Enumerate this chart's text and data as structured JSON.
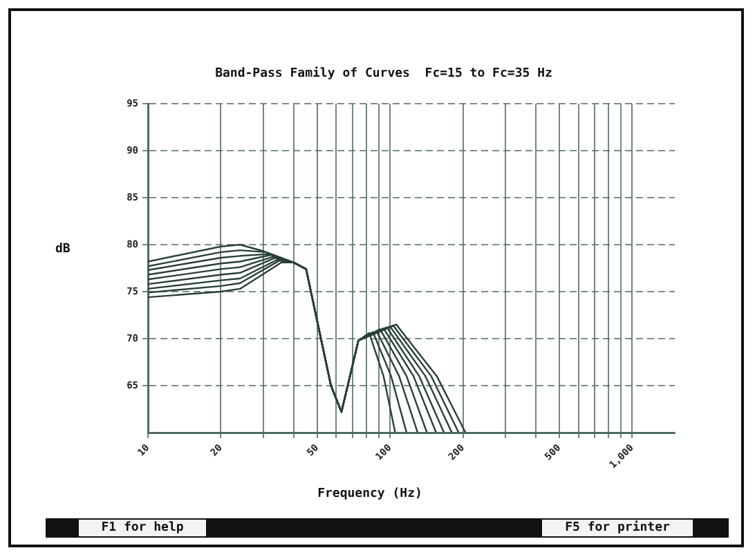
{
  "chart_data": {
    "type": "line",
    "title": "Band-Pass Family of Curves  Fc=15 to Fc=35 Hz",
    "xlabel": "Frequency (Hz)",
    "ylabel": "dB",
    "log": "x",
    "grid": true,
    "legend": false,
    "marker": "none",
    "line_style": "solid",
    "xlim": [
      10,
      1500
    ],
    "ylim": [
      60,
      95
    ],
    "xticks": [
      10,
      20,
      {
        "value": 30,
        "label": null
      },
      {
        "value": 40,
        "label": null
      },
      50,
      {
        "value": 60,
        "label": null
      },
      {
        "value": 70,
        "label": null
      },
      {
        "value": 80,
        "label": null
      },
      {
        "value": 90,
        "label": null
      },
      100,
      200,
      {
        "value": 300,
        "label": null
      },
      {
        "value": 400,
        "label": null
      },
      500,
      {
        "value": 600,
        "label": null
      },
      {
        "value": 700,
        "label": null
      },
      {
        "value": 800,
        "label": null
      },
      {
        "value": 900,
        "label": null
      },
      {
        "value": 1000,
        "label": "1,000"
      }
    ],
    "yticks": [
      65,
      70,
      75,
      80,
      85,
      90,
      95
    ],
    "annotations": [
      "F1 for help",
      "F5 for printer"
    ],
    "series": [
      {
        "color": "#2a3f38",
        "x": [
          10,
          20,
          24,
          30,
          40,
          45,
          57,
          63,
          74,
          82,
          94,
          105
        ],
        "values": [
          78.2,
          79.8,
          80.0,
          79.3,
          78.1,
          77.4,
          65.0,
          62.2,
          69.8,
          70.6,
          66.0,
          60
        ]
      },
      {
        "color": "#2a3f38",
        "x": [
          10,
          20,
          24,
          30.7,
          40,
          45,
          57,
          63,
          74,
          85,
          101,
          117
        ],
        "values": [
          77.7,
          79.2,
          79.4,
          79.2,
          78.1,
          77.4,
          65.0,
          62.2,
          69.8,
          70.7,
          66.0,
          60
        ]
      },
      {
        "color": "#2a3f38",
        "x": [
          10,
          20,
          24,
          31.4,
          40,
          45,
          57,
          63,
          74,
          88,
          109,
          130
        ],
        "values": [
          77.3,
          78.6,
          78.8,
          79.0,
          78.1,
          77.4,
          65.0,
          62.2,
          69.8,
          70.8,
          66.0,
          60
        ]
      },
      {
        "color": "#2a3f38",
        "x": [
          10,
          20,
          24,
          32.1,
          40,
          45,
          57,
          63,
          74,
          91,
          117,
          142
        ],
        "values": [
          76.8,
          78.0,
          78.2,
          78.9,
          78.1,
          77.4,
          65.0,
          62.2,
          69.8,
          71.0,
          66.0,
          60
        ]
      },
      {
        "color": "#2a3f38",
        "x": [
          10,
          20,
          24,
          32.8,
          40,
          45,
          57,
          63,
          74,
          94,
          125,
          155
        ],
        "values": [
          76.3,
          77.4,
          77.6,
          78.7,
          78.1,
          77.4,
          65.0,
          62.2,
          69.8,
          71.1,
          66.0,
          60
        ]
      },
      {
        "color": "#2a3f38",
        "x": [
          10,
          20,
          24,
          33.5,
          40,
          45,
          57,
          63,
          74,
          97,
          132,
          167
        ],
        "values": [
          75.8,
          76.8,
          77.0,
          78.6,
          78.1,
          77.4,
          65.0,
          62.2,
          69.8,
          71.2,
          66.0,
          60
        ]
      },
      {
        "color": "#2a3f38",
        "x": [
          10,
          20,
          24,
          34.2,
          40,
          45,
          57,
          63,
          74,
          100,
          140,
          180
        ],
        "values": [
          75.3,
          76.2,
          76.4,
          78.4,
          78.1,
          77.4,
          65.0,
          62.2,
          69.8,
          71.3,
          66.0,
          60
        ]
      },
      {
        "color": "#2a3f38",
        "x": [
          10,
          20,
          24,
          34.9,
          40,
          45,
          57,
          63,
          74,
          103,
          148,
          192
        ],
        "values": [
          74.9,
          75.6,
          75.9,
          78.3,
          78.1,
          77.4,
          65.0,
          62.2,
          69.8,
          71.4,
          66.0,
          60
        ]
      },
      {
        "color": "#2a3f38",
        "x": [
          10,
          20,
          24,
          35.6,
          40,
          45,
          57,
          63,
          74,
          106,
          156,
          205
        ],
        "values": [
          74.4,
          75.0,
          75.3,
          78.1,
          78.1,
          77.4,
          65.0,
          62.2,
          69.8,
          71.5,
          66.0,
          60
        ]
      }
    ]
  }
}
